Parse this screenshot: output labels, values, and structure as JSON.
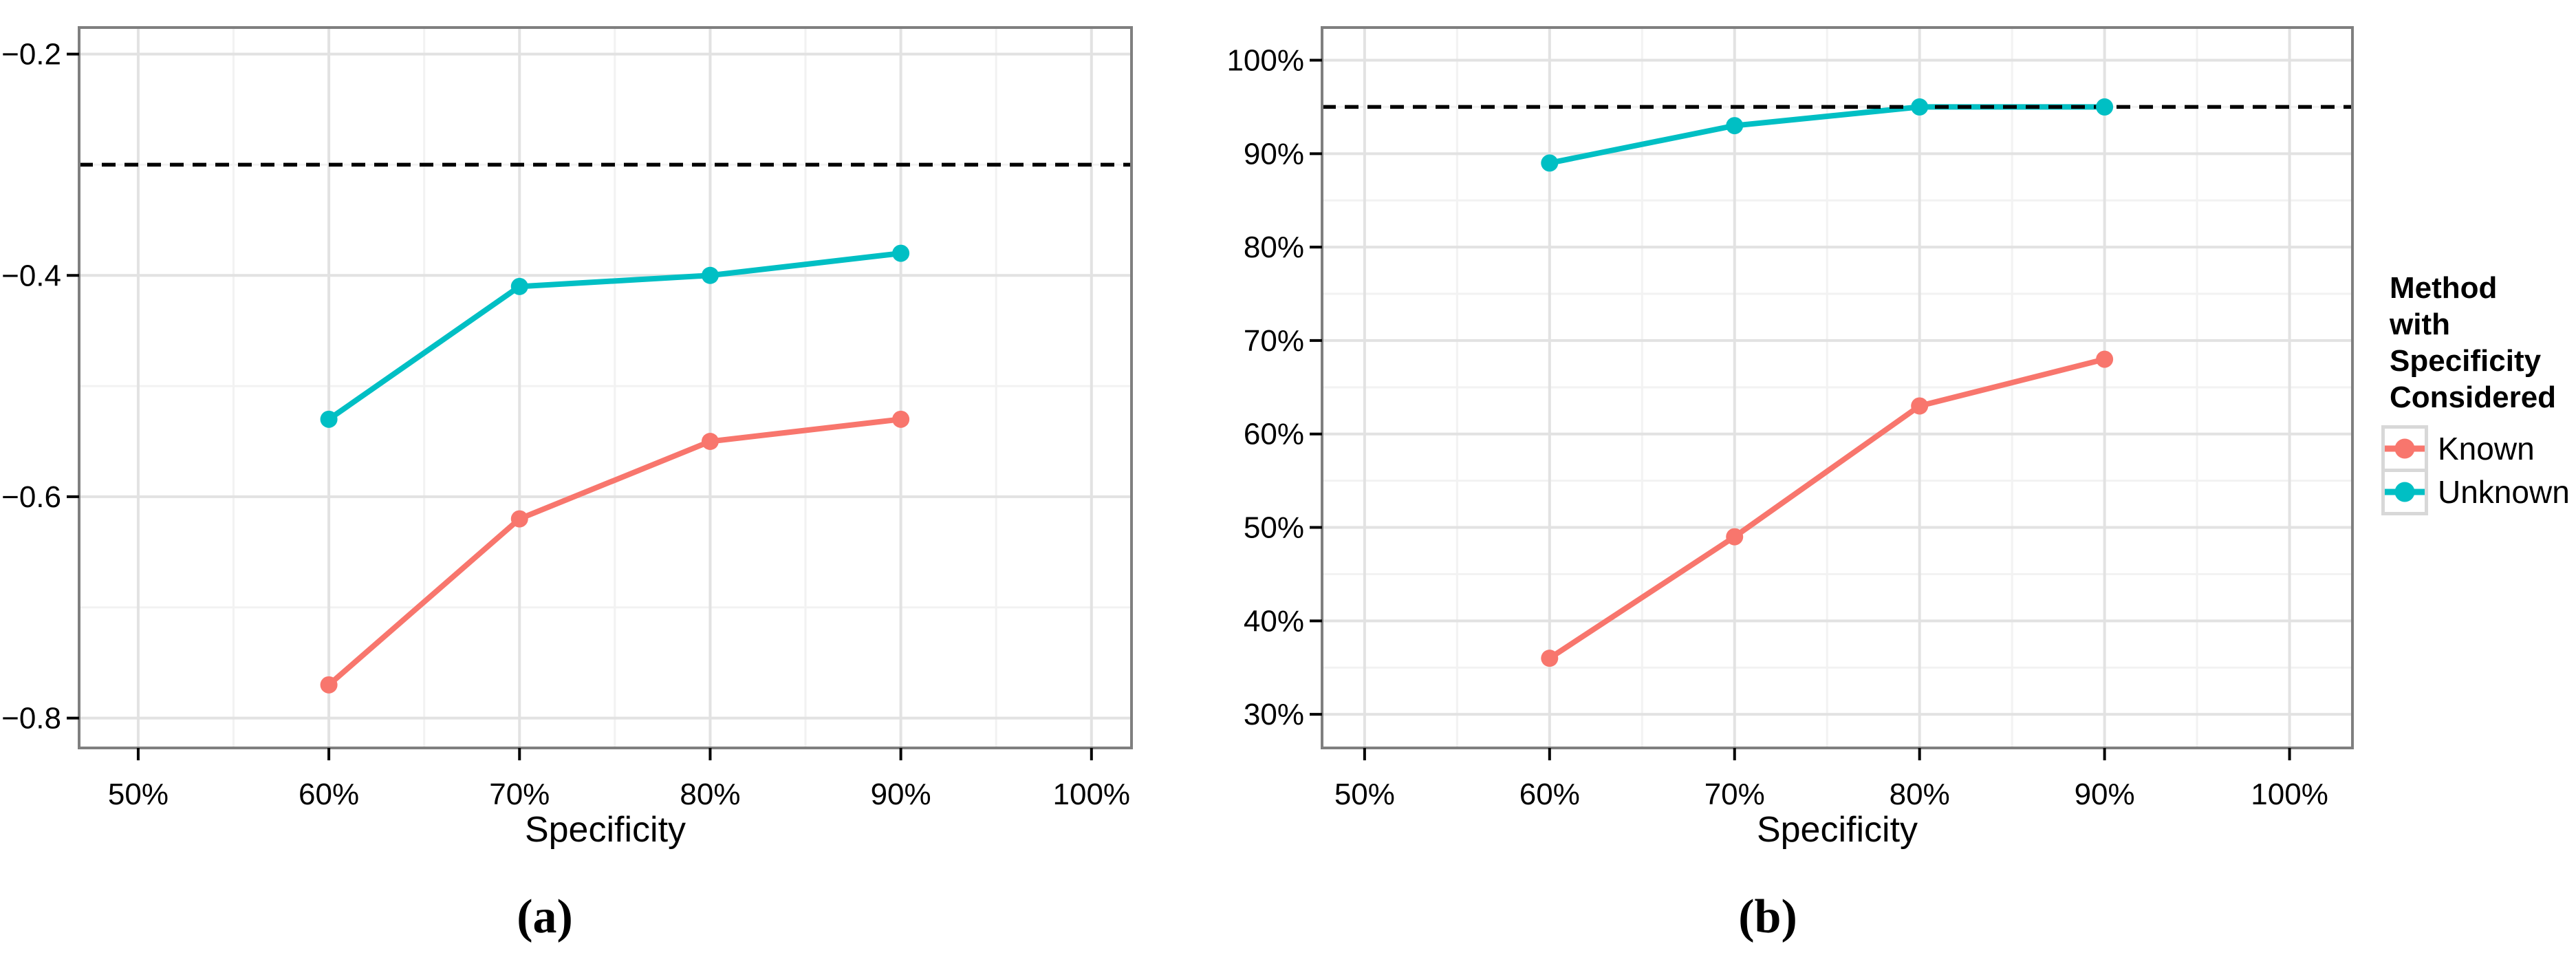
{
  "figure": {
    "captions": {
      "a": "(a)",
      "b": "(b)"
    },
    "legend": {
      "title_lines": [
        "Method",
        "with",
        "Specificity",
        "Considered"
      ],
      "entries": [
        {
          "label": "Known",
          "color": "#F8766D"
        },
        {
          "label": "Unknown",
          "color": "#00BFC4"
        }
      ]
    }
  },
  "colors": {
    "known": "#F8766D",
    "unknown": "#00BFC4",
    "dashed_line": "#000000",
    "grid_major": "#E2E2E2",
    "grid_minor": "#F2F2F2",
    "panel_border": "#7F7F7F",
    "tick": "#000000",
    "text": "#000000"
  },
  "chart_data": [
    {
      "id": "a",
      "type": "line",
      "title": "",
      "xlabel": "Specificity",
      "ylabel": "",
      "caption": "(a)",
      "xlim": [
        46.9,
        102.1
      ],
      "ylim": [
        -0.827,
        -0.176
      ],
      "grid": true,
      "x_ticks": [
        {
          "value": 50,
          "label": "50%"
        },
        {
          "value": 60,
          "label": "60%"
        },
        {
          "value": 70,
          "label": "70%"
        },
        {
          "value": 80,
          "label": "80%"
        },
        {
          "value": 90,
          "label": "90%"
        },
        {
          "value": 100,
          "label": "100%"
        }
      ],
      "y_ticks": [
        {
          "value": -0.2,
          "label": "−0.2"
        },
        {
          "value": -0.4,
          "label": "−0.4"
        },
        {
          "value": -0.6,
          "label": "−0.6"
        },
        {
          "value": -0.8,
          "label": "−0.8"
        }
      ],
      "dashed_reference_line_y": -0.3,
      "x": [
        60,
        70,
        80,
        90
      ],
      "series": [
        {
          "name": "Known",
          "color": "#F8766D",
          "values": [
            -0.77,
            -0.62,
            -0.55,
            -0.53
          ]
        },
        {
          "name": "Unknown",
          "color": "#00BFC4",
          "values": [
            -0.53,
            -0.41,
            -0.4,
            -0.38
          ]
        }
      ]
    },
    {
      "id": "b",
      "type": "line",
      "title": "",
      "xlabel": "Specificity",
      "ylabel": "",
      "caption": "(b)",
      "xlim": [
        47.7,
        103.4
      ],
      "ylim": [
        26.4,
        103.5
      ],
      "grid": true,
      "x_ticks": [
        {
          "value": 50,
          "label": "50%"
        },
        {
          "value": 60,
          "label": "60%"
        },
        {
          "value": 70,
          "label": "70%"
        },
        {
          "value": 80,
          "label": "80%"
        },
        {
          "value": 90,
          "label": "90%"
        },
        {
          "value": 100,
          "label": "100%"
        }
      ],
      "y_ticks": [
        {
          "value": 100,
          "label": "100%"
        },
        {
          "value": 90,
          "label": "90%"
        },
        {
          "value": 80,
          "label": "80%"
        },
        {
          "value": 70,
          "label": "70%"
        },
        {
          "value": 60,
          "label": "60%"
        },
        {
          "value": 50,
          "label": "50%"
        },
        {
          "value": 40,
          "label": "40%"
        },
        {
          "value": 30,
          "label": "30%"
        }
      ],
      "dashed_reference_line_y": 95,
      "x": [
        60,
        70,
        80,
        90
      ],
      "series": [
        {
          "name": "Known",
          "color": "#F8766D",
          "values": [
            36,
            49,
            63,
            68
          ]
        },
        {
          "name": "Unknown",
          "color": "#00BFC4",
          "values": [
            89,
            93,
            95,
            95
          ]
        }
      ]
    }
  ]
}
